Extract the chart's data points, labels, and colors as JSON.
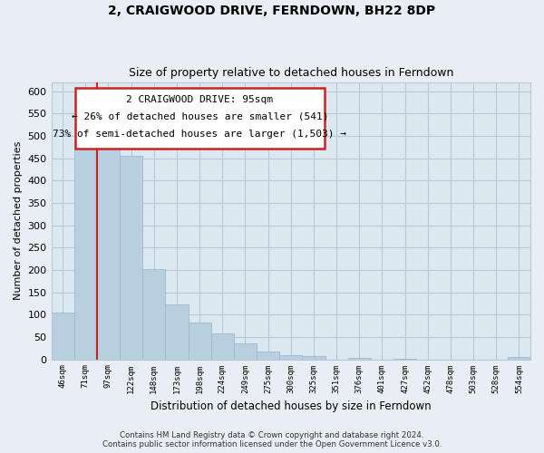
{
  "title": "2, CRAIGWOOD DRIVE, FERNDOWN, BH22 8DP",
  "subtitle": "Size of property relative to detached houses in Ferndown",
  "xlabel": "Distribution of detached houses by size in Ferndown",
  "ylabel": "Number of detached properties",
  "bar_labels": [
    "46sqm",
    "71sqm",
    "97sqm",
    "122sqm",
    "148sqm",
    "173sqm",
    "198sqm",
    "224sqm",
    "249sqm",
    "275sqm",
    "300sqm",
    "325sqm",
    "351sqm",
    "376sqm",
    "401sqm",
    "427sqm",
    "452sqm",
    "478sqm",
    "503sqm",
    "528sqm",
    "554sqm"
  ],
  "bar_values": [
    105,
    490,
    490,
    455,
    202,
    122,
    82,
    57,
    35,
    17,
    10,
    7,
    0,
    3,
    0,
    2,
    0,
    0,
    0,
    0,
    5
  ],
  "highlight_bar_index": 2,
  "bar_color": "#b8cfe0",
  "bar_edge_color": "#a0b8d0",
  "highlight_line_color": "#cc2222",
  "ylim": [
    0,
    620
  ],
  "yticks": [
    0,
    50,
    100,
    150,
    200,
    250,
    300,
    350,
    400,
    450,
    500,
    550,
    600
  ],
  "annotation_title": "2 CRAIGWOOD DRIVE: 95sqm",
  "annotation_line1": "← 26% of detached houses are smaller (541)",
  "annotation_line2": "73% of semi-detached houses are larger (1,503) →",
  "footer_line1": "Contains HM Land Registry data © Crown copyright and database right 2024.",
  "footer_line2": "Contains public sector information licensed under the Open Government Licence v3.0.",
  "bg_color": "#e8eef4",
  "plot_bg_color": "#dce8f0",
  "grid_color": "#b8c8d8",
  "title_fontsize": 10,
  "subtitle_fontsize": 9
}
